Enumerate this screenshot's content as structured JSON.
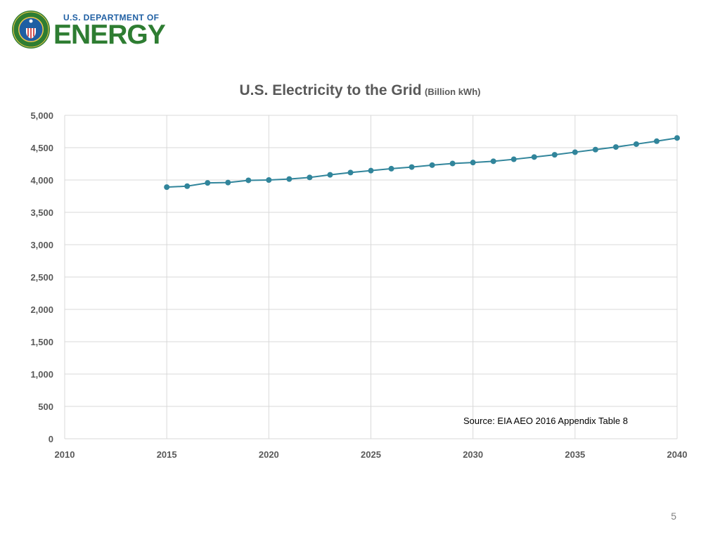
{
  "header": {
    "org_top": "U.S. DEPARTMENT OF",
    "org_main": "ENERGY",
    "seal_icon": "doe-seal-icon",
    "seal_ring_text": "DEPARTMENT OF ENERGY · UNITED STATES OF AMERICA"
  },
  "colors": {
    "series": "#31859b",
    "grid": "#d9d9d9",
    "tick_text": "#595959",
    "logo_green": "#2e7d32",
    "logo_blue": "#1f5fa3"
  },
  "chart_data": {
    "type": "line",
    "title": "U.S. Electricity to the Grid",
    "title_unit": "(Billion kWh)",
    "xlabel": "",
    "ylabel": "",
    "xlim": [
      2010,
      2040
    ],
    "ylim": [
      0,
      5000
    ],
    "x_ticks": [
      2010,
      2015,
      2020,
      2025,
      2030,
      2035,
      2040
    ],
    "y_ticks": [
      0,
      500,
      1000,
      1500,
      2000,
      2500,
      3000,
      3500,
      4000,
      4500,
      5000
    ],
    "y_tick_labels": [
      "0",
      "500",
      "1,000",
      "1,500",
      "2,000",
      "2,500",
      "3,000",
      "3,500",
      "4,000",
      "4,500",
      "5,000"
    ],
    "grid": true,
    "annotation": "Source: EIA AEO 2016 Appendix Table 8",
    "series": [
      {
        "name": "Electricity to the Grid",
        "x": [
          2015,
          2016,
          2017,
          2018,
          2019,
          2020,
          2021,
          2022,
          2023,
          2024,
          2025,
          2026,
          2027,
          2028,
          2029,
          2030,
          2031,
          2032,
          2033,
          2034,
          2035,
          2036,
          2037,
          2038,
          2039,
          2040
        ],
        "values": [
          3890,
          3905,
          3955,
          3960,
          3995,
          4000,
          4015,
          4040,
          4080,
          4115,
          4145,
          4175,
          4200,
          4230,
          4255,
          4270,
          4290,
          4320,
          4355,
          4390,
          4430,
          4470,
          4510,
          4555,
          4600,
          4650
        ]
      }
    ]
  },
  "footer": {
    "page_number": "5"
  }
}
